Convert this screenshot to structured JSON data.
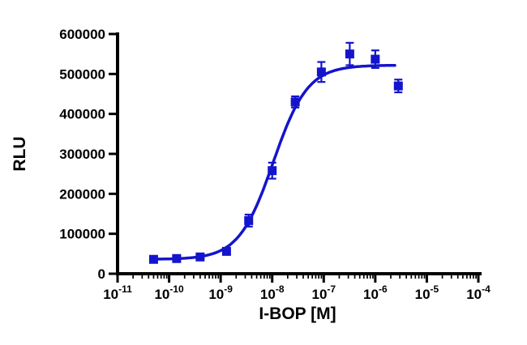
{
  "chart_data": {
    "type": "scatter",
    "title": "",
    "xlabel": "I-BOP [M]",
    "ylabel": "RLU",
    "x_scale": "log10",
    "x_log_range": [
      -11,
      -4
    ],
    "ylim": [
      0,
      600000
    ],
    "y_ticks": [
      0,
      100000,
      200000,
      300000,
      400000,
      500000,
      600000
    ],
    "x_tick_base": "10",
    "x_tick_exponents": [
      -11,
      -10,
      -9,
      -8,
      -7,
      -6,
      -5,
      -4
    ],
    "grid": "off",
    "legend": "none",
    "marker_shape": "square",
    "marker_color": "#1414CC",
    "axis_color": "#000000",
    "points": [
      {
        "x": 5e-11,
        "y": 36000,
        "err": 5000
      },
      {
        "x": 1.4e-10,
        "y": 38000,
        "err": 5000
      },
      {
        "x": 4e-10,
        "y": 42000,
        "err": 5000
      },
      {
        "x": 1.3e-09,
        "y": 56000,
        "err": 6000
      },
      {
        "x": 3.5e-09,
        "y": 133000,
        "err": 15000
      },
      {
        "x": 1e-08,
        "y": 258000,
        "err": 20000
      },
      {
        "x": 2.8e-08,
        "y": 430000,
        "err": 14000
      },
      {
        "x": 9e-08,
        "y": 505000,
        "err": 25000
      },
      {
        "x": 3.2e-07,
        "y": 550000,
        "err": 28000
      },
      {
        "x": 1e-06,
        "y": 537000,
        "err": 22000
      },
      {
        "x": 2.8e-06,
        "y": 470000,
        "err": 16000
      }
    ],
    "fit": {
      "model": "4PL-sigmoid",
      "bottom": 36000,
      "top": 522000,
      "log_ec50": -7.98,
      "hill": 1.3,
      "x_start": 5e-11,
      "x_end": 2.4e-06
    }
  }
}
